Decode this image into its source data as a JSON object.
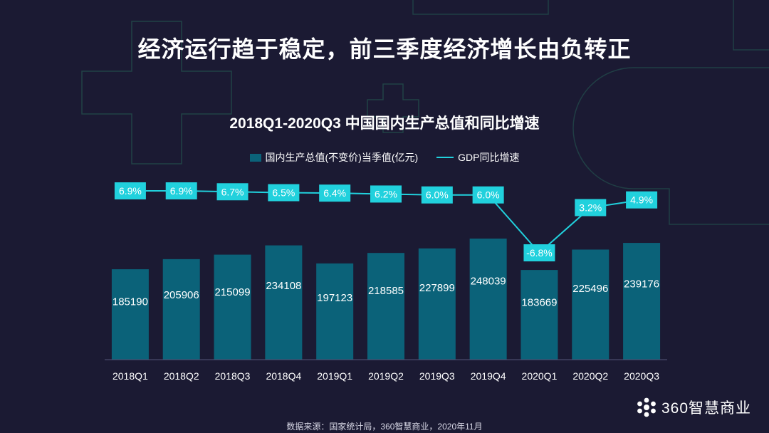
{
  "headline": "经济运行趋于稳定，前三季度经济增长由负转正",
  "source_note": "数据来源：国家统计局，360智慧商业，2020年11月",
  "logo_text": "360智慧商业",
  "colors": {
    "background": "#1b1a33",
    "bar": "#0b6279",
    "line": "#21d1dd",
    "label_box": "#21d1dd",
    "decor_outline": "#2a6b5b"
  },
  "chart_data": {
    "type": "bar+line",
    "title": "2018Q1-2020Q3 中国国内生产总值和同比增速",
    "categories": [
      "2018Q1",
      "2018Q2",
      "2018Q3",
      "2018Q4",
      "2019Q1",
      "2019Q2",
      "2019Q3",
      "2019Q4",
      "2020Q1",
      "2020Q2",
      "2020Q3"
    ],
    "series": [
      {
        "name": "国内生产总值(不变价)当季值(亿元)",
        "type": "bar",
        "values": [
          185190,
          205906,
          215099,
          234108,
          197123,
          218585,
          227899,
          248039,
          183669,
          225496,
          239176
        ],
        "labels": [
          "185190",
          "205906",
          "215099",
          "234108",
          "197123",
          "218585",
          "227899",
          "248039",
          "183669",
          "225496",
          "239176"
        ]
      },
      {
        "name": "GDP同比增速",
        "type": "line",
        "values": [
          6.9,
          6.9,
          6.7,
          6.5,
          6.4,
          6.2,
          6.0,
          6.0,
          -6.8,
          3.2,
          4.9
        ],
        "labels": [
          "6.9%",
          "6.9%",
          "6.7%",
          "6.5%",
          "6.4%",
          "6.2%",
          "6.0%",
          "6.0%",
          "-6.8%",
          "3.2%",
          "4.9%"
        ]
      }
    ],
    "legend_position": "top",
    "grid": false
  }
}
